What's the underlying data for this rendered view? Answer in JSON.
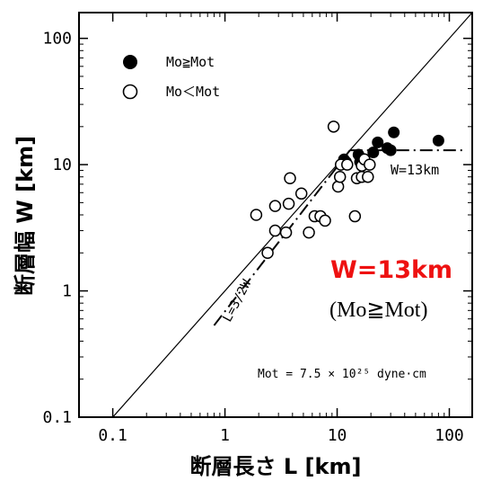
{
  "chart_data": {
    "type": "scatter",
    "xlabel": "断層長さ L [km]",
    "ylabel": "断層幅 W [km]",
    "x_scale": "log",
    "y_scale": "log",
    "xlim": [
      0.05,
      160
    ],
    "ylim": [
      0.1,
      160
    ],
    "x_ticks": [
      {
        "value": 0.1,
        "label": "0.1"
      },
      {
        "value": 1,
        "label": "1"
      },
      {
        "value": 10,
        "label": "10"
      },
      {
        "value": 100,
        "label": "100"
      }
    ],
    "y_ticks": [
      {
        "value": 0.1,
        "label": "0.1"
      },
      {
        "value": 1,
        "label": "1"
      },
      {
        "value": 10,
        "label": "10"
      },
      {
        "value": 100,
        "label": "100"
      }
    ],
    "legend": {
      "position": "top-left",
      "entries": [
        {
          "label": "Mo≧Mot",
          "marker": "filled-circle"
        },
        {
          "label": "Mo＜Mot",
          "marker": "open-circle"
        }
      ]
    },
    "series": [
      {
        "name": "Mo≧Mot",
        "marker": "filled",
        "points": [
          [
            11.5,
            11
          ],
          [
            12,
            10.5
          ],
          [
            15.5,
            12
          ],
          [
            16,
            10.5
          ],
          [
            17.5,
            11
          ],
          [
            21,
            12.5
          ],
          [
            23,
            15
          ],
          [
            28,
            13.5
          ],
          [
            30,
            13
          ],
          [
            32,
            18
          ],
          [
            80,
            15.5
          ]
        ]
      },
      {
        "name": "Mo＜Mot",
        "marker": "open",
        "points": [
          [
            1.9,
            4
          ],
          [
            2.4,
            2
          ],
          [
            2.8,
            4.7
          ],
          [
            2.8,
            3
          ],
          [
            3.5,
            2.9
          ],
          [
            3.7,
            4.9
          ],
          [
            3.8,
            7.8
          ],
          [
            4.8,
            5.9
          ],
          [
            5.6,
            2.9
          ],
          [
            6.3,
            3.9
          ],
          [
            7.1,
            3.9
          ],
          [
            7.8,
            3.6
          ],
          [
            9.3,
            20
          ],
          [
            10.2,
            6.7
          ],
          [
            10.6,
            8
          ],
          [
            10.8,
            10
          ],
          [
            12.3,
            10
          ],
          [
            14.4,
            3.9
          ],
          [
            15,
            7.8
          ],
          [
            16.6,
            8
          ],
          [
            16.6,
            9.8
          ],
          [
            17.5,
            11
          ],
          [
            18.8,
            8
          ],
          [
            19.5,
            10
          ]
        ]
      }
    ],
    "reference_lines": [
      {
        "style": "solid",
        "points": [
          [
            0.1,
            0.1
          ],
          [
            160,
            160
          ]
        ]
      },
      {
        "style": "dash-dot",
        "label": "L=3/2W",
        "points": [
          [
            0.8,
            0.533
          ],
          [
            13,
            13
          ]
        ]
      },
      {
        "style": "dash-dot",
        "label": "W=13km",
        "points": [
          [
            13,
            13
          ],
          [
            130,
            13
          ]
        ]
      }
    ],
    "annotations": {
      "mot_formula": "Mot = 7.5 × 10²⁵ dyne·cm",
      "conclusion_value": "W=13km",
      "conclusion_condition": "(Mo≧Mot)"
    },
    "colors": {
      "axes": "#000000",
      "conclusion": "#ee1111"
    }
  }
}
